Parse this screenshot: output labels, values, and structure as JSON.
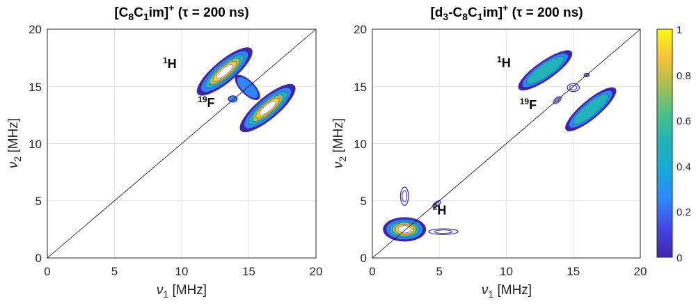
{
  "colors": {
    "ring_1": "#3e26a8",
    "ring_2": "#2e87f7",
    "ring_3": "#20b1b9",
    "ring_4": "#a6be54",
    "ring_5": "#f9d431",
    "core": "#ffffff"
  },
  "colorbar": {
    "ticks": [
      "1",
      "0.8",
      "0.6",
      "0.4",
      "0.2",
      "0"
    ]
  },
  "chart_data": [
    {
      "type": "heatmap",
      "title": {
        "main": "[C",
        "sub1": "8",
        "mid": "C",
        "sub2": "1",
        "tail": "im]",
        "sup": "+",
        "param": " (τ = 200 ns)"
      },
      "xlabel": {
        "sym": "ν",
        "sub": "1",
        "unit": " [MHz]"
      },
      "ylabel": {
        "sym": "ν",
        "sub": "2",
        "unit": " [MHz]"
      },
      "xlim": [
        0,
        20
      ],
      "ylim": [
        0,
        20
      ],
      "xticks": [
        "0",
        "5",
        "10",
        "15",
        "20"
      ],
      "yticks": [
        "0",
        "5",
        "10",
        "15",
        "20"
      ],
      "grid": true,
      "diagonal": true,
      "annotations": [
        {
          "sup": "1",
          "label": "H",
          "x": 8.6,
          "y": 16.6
        },
        {
          "sup": "19",
          "label": "F",
          "x": 11.2,
          "y": 13.2
        }
      ],
      "peaks": [
        {
          "cx": 13.2,
          "cy": 16.3,
          "rx": 2.6,
          "ry": 0.95,
          "angle": -40,
          "level": 1.0
        },
        {
          "cx": 16.4,
          "cy": 13.1,
          "rx": 2.6,
          "ry": 0.95,
          "angle": -40,
          "level": 1.0
        },
        {
          "cx": 14.9,
          "cy": 14.9,
          "rx": 1.2,
          "ry": 0.6,
          "angle": 45,
          "level": 0.35
        },
        {
          "cx": 13.8,
          "cy": 13.9,
          "rx": 0.35,
          "ry": 0.3,
          "angle": 0,
          "level": 0.3
        }
      ]
    },
    {
      "type": "heatmap",
      "title": {
        "main": "[d",
        "sub0": "3",
        "dash": "-C",
        "sub1": "8",
        "mid": "C",
        "sub2": "1",
        "tail": "im]",
        "sup": "+",
        "param": " (τ = 200 ns)"
      },
      "xlabel": {
        "sym": "ν",
        "sub": "1",
        "unit": " [MHz]"
      },
      "ylabel": {
        "sym": "ν",
        "sub": "2",
        "unit": " [MHz]"
      },
      "xlim": [
        0,
        20
      ],
      "ylim": [
        0,
        20
      ],
      "xticks": [
        "0",
        "5",
        "10",
        "15",
        "20"
      ],
      "yticks": [
        "0",
        "5",
        "10",
        "15",
        "20"
      ],
      "grid": true,
      "diagonal": true,
      "annotations": [
        {
          "sup": "1",
          "label": "H",
          "x": 9.3,
          "y": 16.7
        },
        {
          "sup": "19",
          "label": "F",
          "x": 11.0,
          "y": 13.0
        },
        {
          "sup": "2",
          "label": "H",
          "x": 4.5,
          "y": 3.8
        }
      ],
      "peaks": [
        {
          "cx": 2.4,
          "cy": 2.5,
          "rx": 1.6,
          "ry": 1.05,
          "angle": 0,
          "level": 1.0
        },
        {
          "cx": 5.3,
          "cy": 2.3,
          "rx": 1.1,
          "ry": 0.25,
          "angle": 0,
          "level": 0.15
        },
        {
          "cx": 2.4,
          "cy": 5.4,
          "rx": 0.3,
          "ry": 0.8,
          "angle": 0,
          "level": 0.15
        },
        {
          "cx": 4.8,
          "cy": 4.7,
          "rx": 0.35,
          "ry": 0.2,
          "angle": -40,
          "level": 0.1
        },
        {
          "cx": 12.9,
          "cy": 16.4,
          "rx": 2.4,
          "ry": 0.8,
          "angle": -35,
          "level": 0.55
        },
        {
          "cx": 16.3,
          "cy": 13.0,
          "rx": 2.4,
          "ry": 0.8,
          "angle": -40,
          "level": 0.55
        },
        {
          "cx": 15.0,
          "cy": 14.9,
          "rx": 0.45,
          "ry": 0.35,
          "angle": 0,
          "level": 0.1
        },
        {
          "cx": 16.0,
          "cy": 16.0,
          "rx": 0.2,
          "ry": 0.15,
          "angle": 0,
          "level": 0.1
        },
        {
          "cx": 13.8,
          "cy": 13.8,
          "rx": 0.35,
          "ry": 0.2,
          "angle": -40,
          "level": 0.15
        }
      ]
    }
  ]
}
